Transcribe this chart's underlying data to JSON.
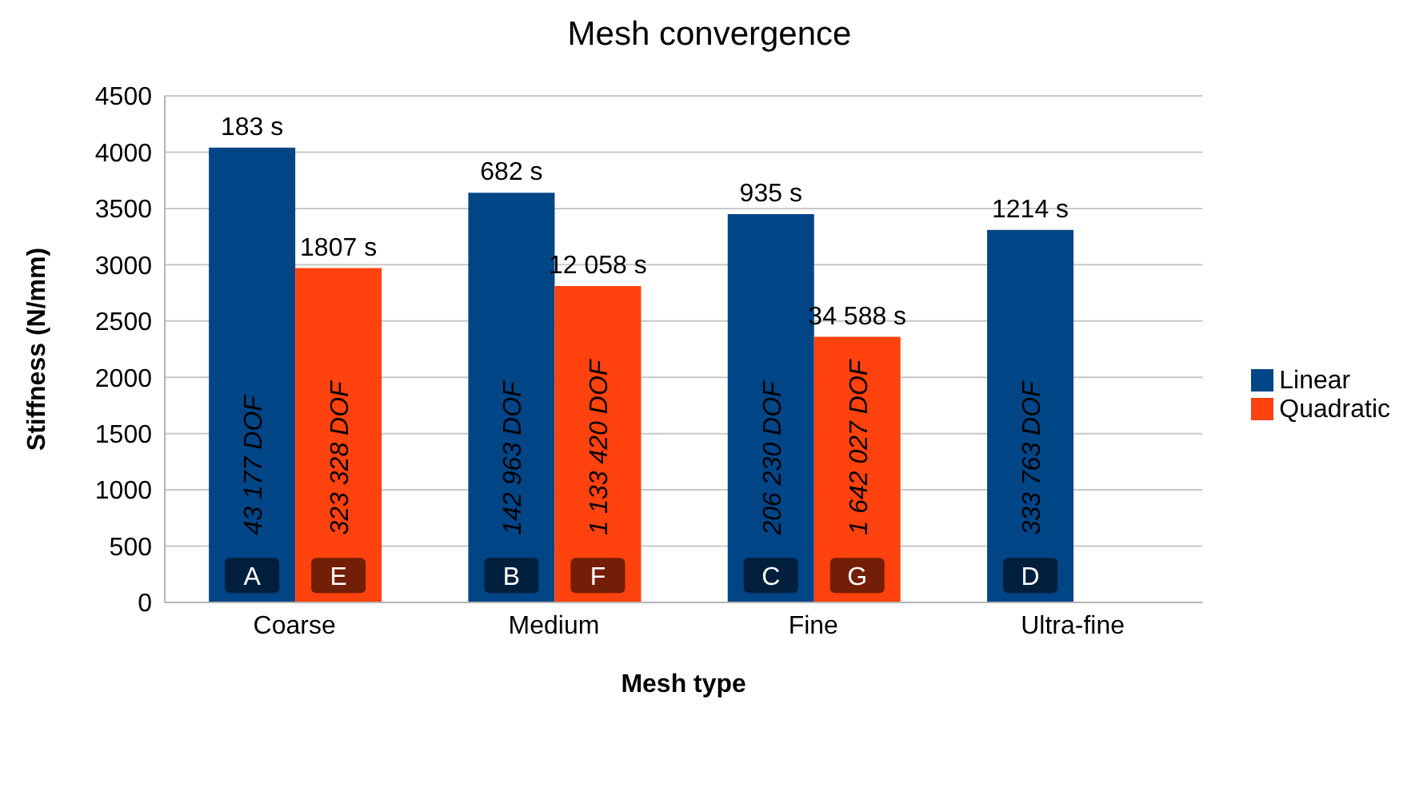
{
  "chart_data": {
    "type": "bar",
    "title": "Mesh convergence",
    "xlabel": "Mesh type",
    "ylabel": "Stiffness (N/mm)",
    "categories": [
      "Coarse",
      "Medium",
      "Fine",
      "Ultra-fine"
    ],
    "series": [
      {
        "name": "Linear",
        "color": "#004586",
        "values": [
          4040,
          3640,
          3450,
          3310
        ]
      },
      {
        "name": "Quadratic",
        "color": "#ff420e",
        "values": [
          2970,
          2810,
          2360,
          null
        ]
      }
    ],
    "ylim": [
      0,
      4500
    ],
    "yticks": [
      0,
      500,
      1000,
      1500,
      2000,
      2500,
      3000,
      3500,
      4000,
      4500
    ],
    "grid": "y",
    "legend": "right",
    "annotations": [
      {
        "text": "183 s",
        "x": "Coarse",
        "y": 4040
      },
      {
        "text": "43 177 DOF",
        "x": "Coarse",
        "y": 600
      },
      {
        "text": "A",
        "x": "Coarse",
        "y": 240
      },
      {
        "text": "1807 s",
        "x": "Coarse",
        "y": 2970
      },
      {
        "text": "323 328 DOF",
        "x": "Coarse",
        "y": 600
      },
      {
        "text": "E",
        "x": "Coarse",
        "y": 240
      },
      {
        "text": "682 s",
        "x": "Medium",
        "y": 3640
      },
      {
        "text": "142 963 DOF",
        "x": "Medium",
        "y": 600
      },
      {
        "text": "B",
        "x": "Medium",
        "y": 240
      },
      {
        "text": "12 058 s",
        "x": "Medium",
        "y": 2810
      },
      {
        "text": "1 133 420 DOF",
        "x": "Medium",
        "y": 600
      },
      {
        "text": "F",
        "x": "Medium",
        "y": 240
      },
      {
        "text": "935 s",
        "x": "Fine",
        "y": 3450
      },
      {
        "text": "206 230 DOF",
        "x": "Fine",
        "y": 600
      },
      {
        "text": "C",
        "x": "Fine",
        "y": 240
      },
      {
        "text": "34 588 s",
        "x": "Fine",
        "y": 2360
      },
      {
        "text": "1 642 027 DOF",
        "x": "Fine",
        "y": 600
      },
      {
        "text": "G",
        "x": "Fine",
        "y": 240
      },
      {
        "text": "1214 s",
        "x": "Ultra-fine",
        "y": 3310
      },
      {
        "text": "333 763 DOF",
        "x": "Ultra-fine",
        "y": 600
      },
      {
        "text": "D",
        "x": "Ultra-fine",
        "y": 240
      }
    ]
  }
}
